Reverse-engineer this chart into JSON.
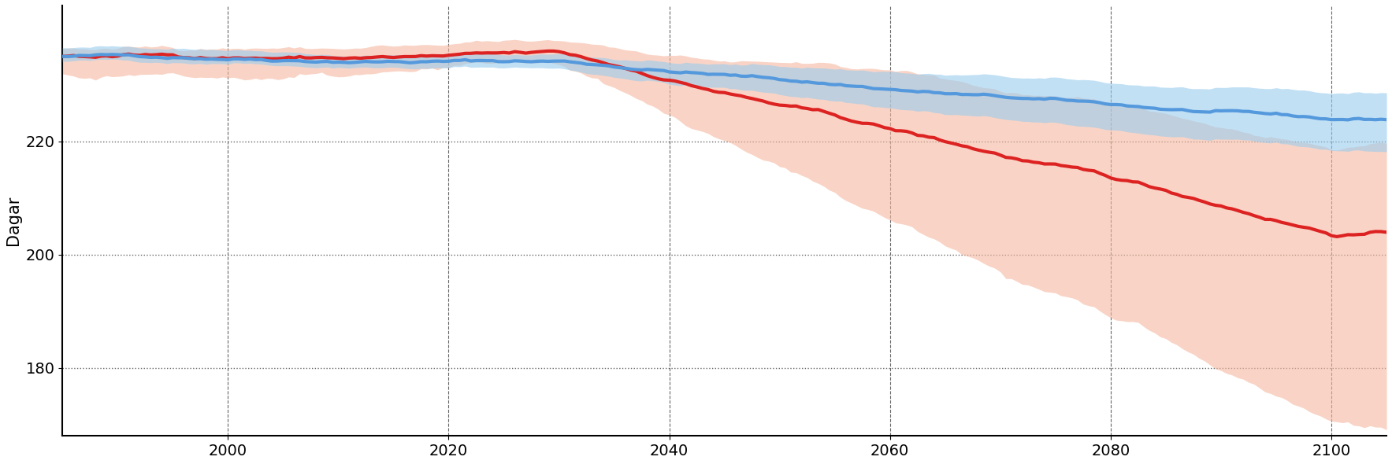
{
  "ylabel": "Dagar",
  "xlim": [
    1985,
    2105
  ],
  "ylim": [
    168,
    244
  ],
  "yticks": [
    180,
    200,
    220
  ],
  "xticks": [
    2000,
    2020,
    2040,
    2060,
    2080,
    2100
  ],
  "x_start": 1985,
  "x_end": 2105,
  "blue_color": "#5599dd",
  "red_color": "#dd2222",
  "blue_fill_color": "#99ccee",
  "red_fill_color": "#f5b8a0",
  "blue_fill_alpha": 0.6,
  "red_fill_alpha": 0.6,
  "background_color": "#ffffff",
  "hgrid_color": "#666666",
  "vgrid_color": "#666666",
  "ylabel_fontsize": 15,
  "tick_fontsize": 14,
  "linewidth": 3.0,
  "figsize": [
    17.67,
    5.9
  ],
  "dpi": 100
}
